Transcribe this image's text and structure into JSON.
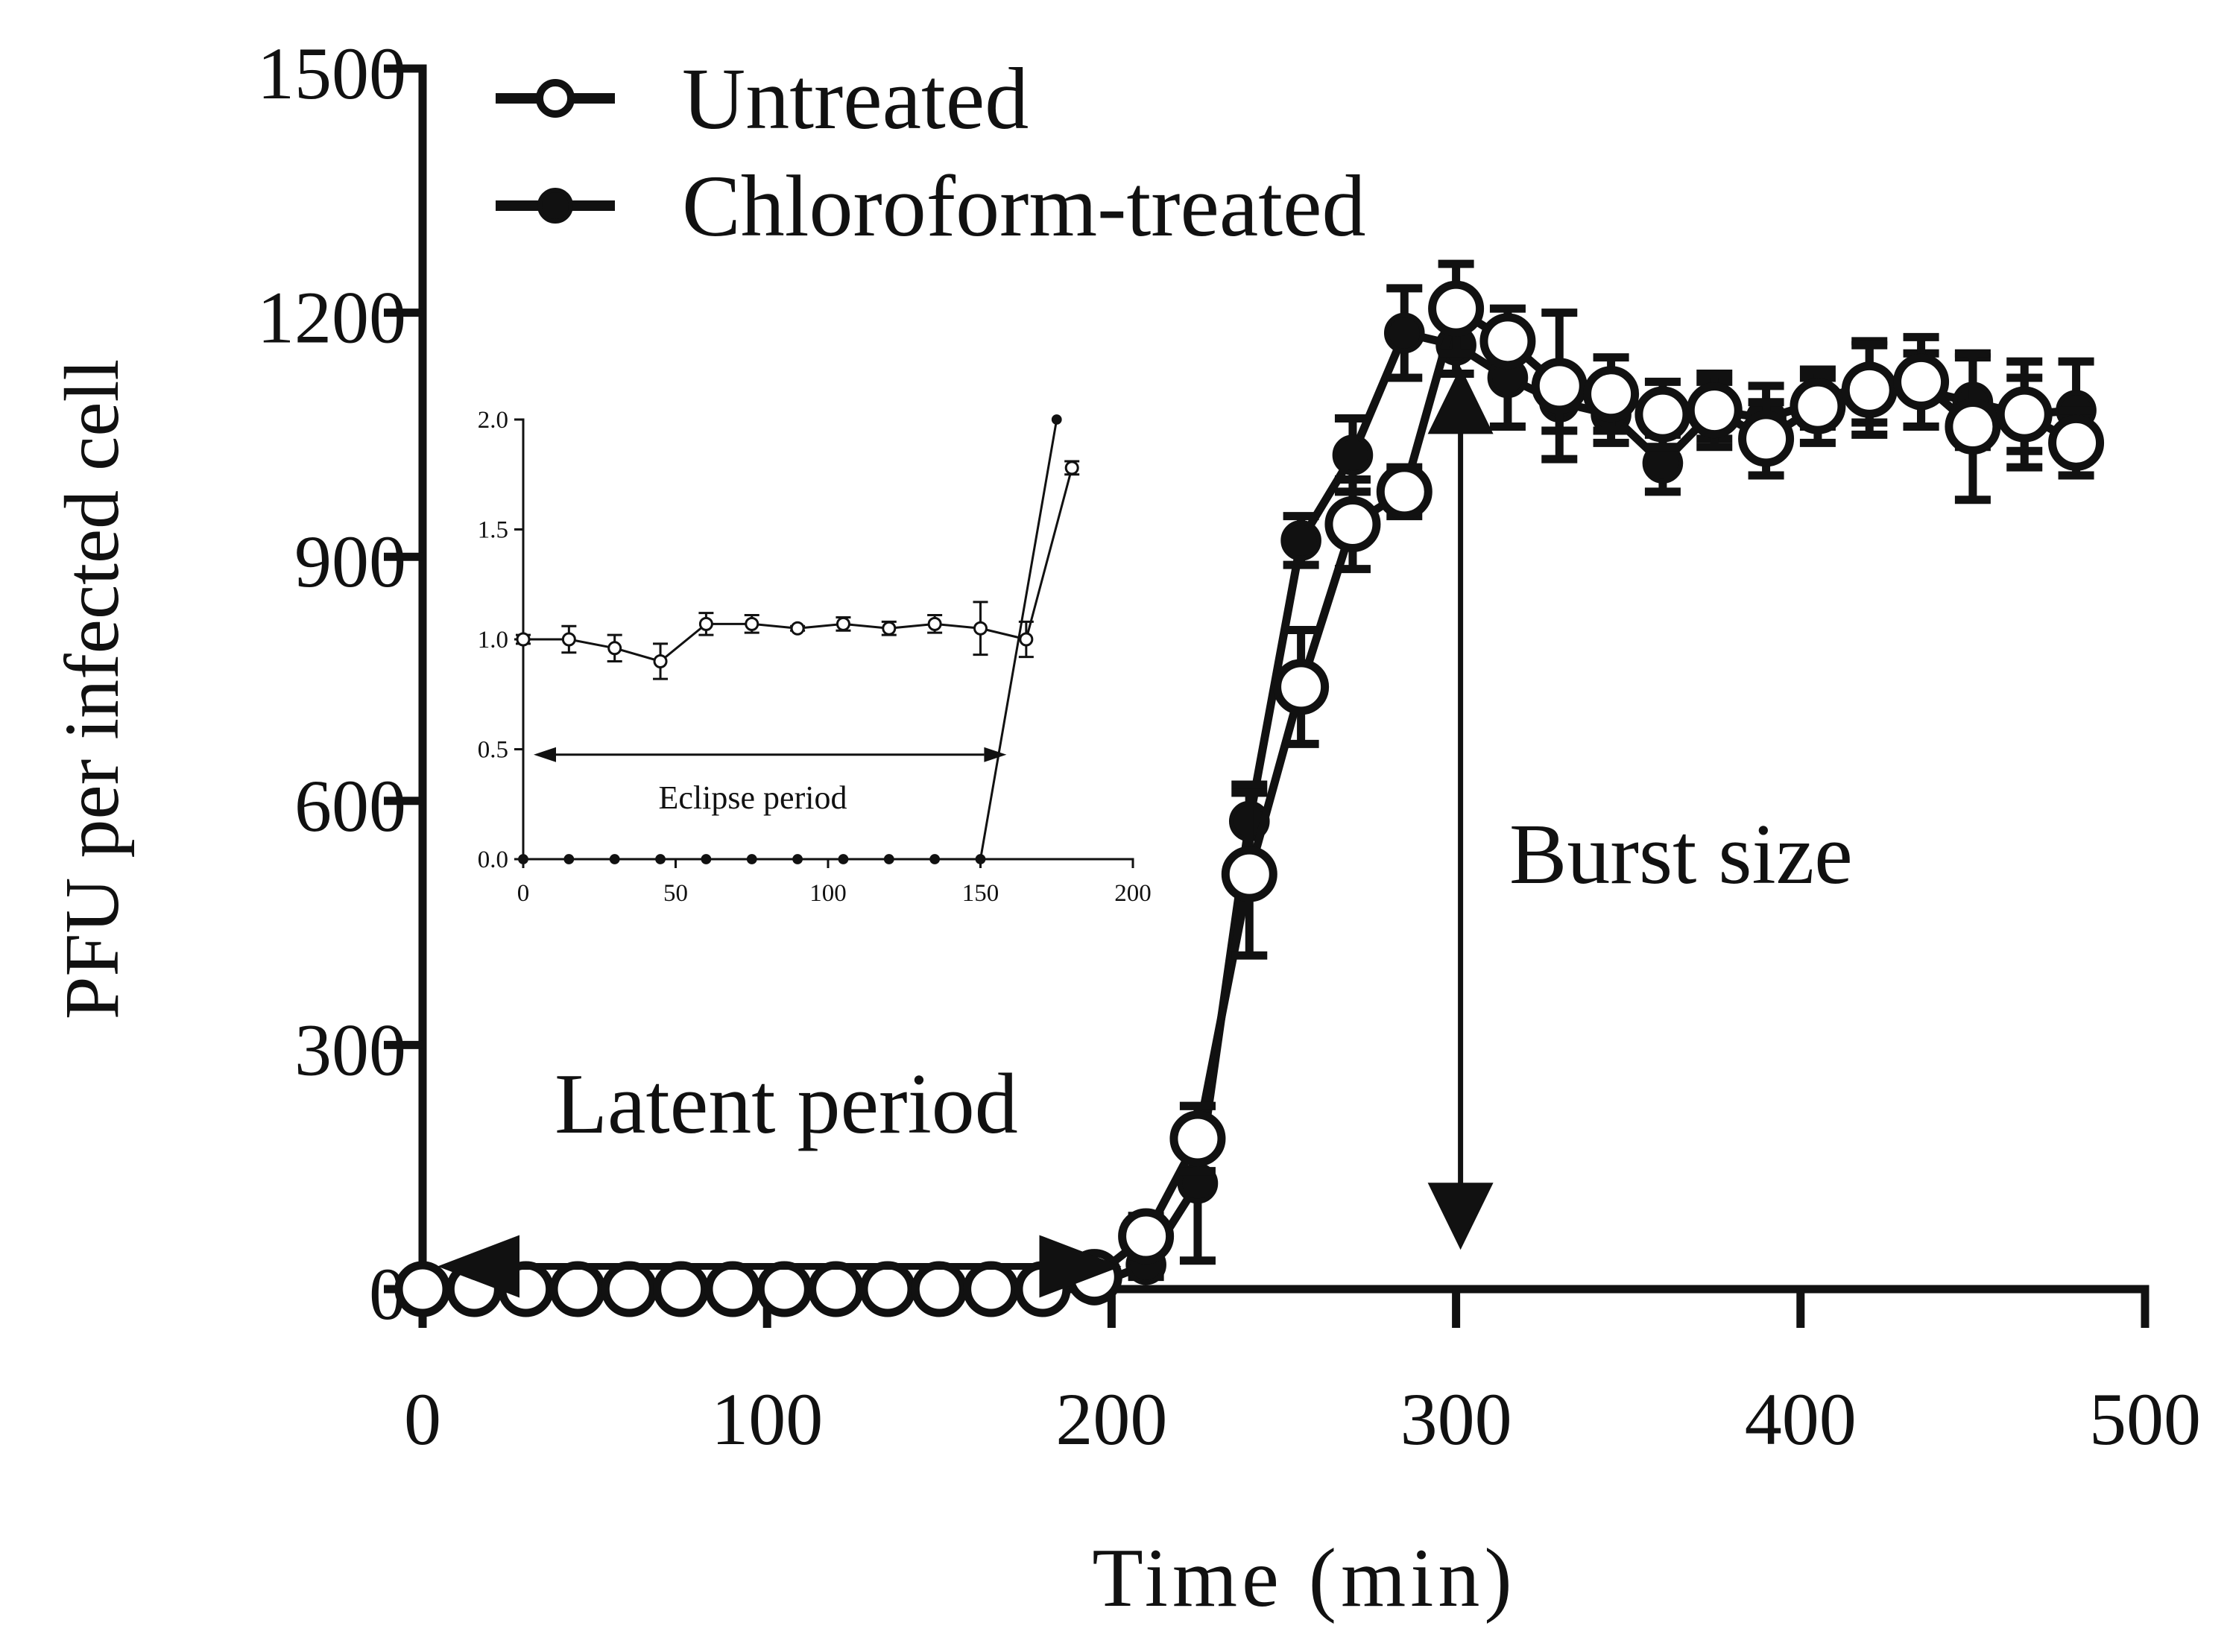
{
  "chart_data": [
    {
      "id": "main",
      "type": "line",
      "title": "",
      "xlabel": "Time (min)",
      "ylabel": "PFU per infected cell",
      "xlim": [
        0,
        500
      ],
      "ylim": [
        0,
        1500
      ],
      "xticks": [
        0,
        100,
        200,
        300,
        400,
        500
      ],
      "yticks": [
        0,
        300,
        600,
        900,
        1200,
        1500
      ],
      "xtick_labels": [
        "0",
        "100",
        "200",
        "300",
        "400",
        "500"
      ],
      "ytick_labels": [
        "0",
        "300",
        "600",
        "900",
        "1200",
        "1500"
      ],
      "grid": false,
      "legend": "top-left",
      "series": [
        {
          "name": "Untreated",
          "marker": "open-circle",
          "x": [
            0,
            15,
            30,
            45,
            60,
            75,
            90,
            105,
            120,
            135,
            150,
            165,
            180,
            195,
            210,
            225,
            240,
            255,
            270,
            285,
            300,
            315,
            330,
            345,
            360,
            375,
            390,
            405,
            420,
            435,
            450,
            465,
            480
          ],
          "y": [
            0,
            0,
            0,
            0,
            0,
            0,
            0,
            0,
            0,
            0,
            0,
            0,
            0,
            15,
            65,
            185,
            510,
            740,
            940,
            980,
            1205,
            1165,
            1110,
            1100,
            1075,
            1080,
            1045,
            1085,
            1105,
            1115,
            1060,
            1075,
            1040
          ],
          "err": [
            0,
            0,
            0,
            0,
            0,
            0,
            0,
            0,
            0,
            0,
            0,
            0,
            0,
            10,
            25,
            40,
            100,
            70,
            55,
            30,
            55,
            40,
            90,
            45,
            40,
            45,
            45,
            45,
            55,
            55,
            90,
            65,
            40
          ]
        },
        {
          "name": "Chloroform-treated",
          "marker": "filled-circle",
          "x": [
            0,
            15,
            30,
            45,
            60,
            75,
            90,
            105,
            120,
            135,
            150,
            165,
            180,
            195,
            210,
            225,
            240,
            255,
            270,
            285,
            300,
            315,
            330,
            345,
            360,
            375,
            390,
            405,
            420,
            435,
            450,
            465,
            480
          ],
          "y": [
            0,
            0,
            0,
            0,
            0,
            0,
            0,
            0,
            0,
            0,
            0,
            0,
            0,
            5,
            30,
            130,
            575,
            920,
            1025,
            1175,
            1160,
            1120,
            1090,
            1075,
            1015,
            1080,
            1070,
            1090,
            1115,
            1105,
            1090,
            1075,
            1080
          ],
          "err": [
            0,
            0,
            0,
            0,
            0,
            0,
            0,
            0,
            0,
            0,
            0,
            0,
            0,
            5,
            15,
            95,
            45,
            30,
            45,
            55,
            35,
            60,
            35,
            35,
            35,
            35,
            40,
            30,
            50,
            45,
            55,
            45,
            60
          ]
        }
      ],
      "annotations": [
        {
          "text": "Latent period",
          "arrow": "double-horizontal",
          "from_x": 0,
          "to_x": 205,
          "at_y": 60
        },
        {
          "text": "Burst size",
          "arrow": "double-vertical",
          "at_x": 300,
          "from_y": 30,
          "to_y": 1170
        }
      ]
    },
    {
      "id": "inset",
      "type": "line",
      "xlim": [
        0,
        200
      ],
      "ylim": [
        0,
        2.0
      ],
      "xticks": [
        0,
        50,
        100,
        150,
        200
      ],
      "yticks": [
        0,
        0.5,
        1.0,
        1.5,
        2.0
      ],
      "xtick_labels": [
        "0",
        "50",
        "100",
        "150",
        "200"
      ],
      "ytick_labels": [
        "0.0",
        "0.5",
        "1.0",
        "1.5",
        "2.0"
      ],
      "series": [
        {
          "name": "Untreated",
          "marker": "open-circle",
          "x": [
            0,
            15,
            30,
            45,
            60,
            75,
            90,
            105,
            120,
            135,
            150,
            165,
            180
          ],
          "y": [
            1.0,
            1.0,
            0.96,
            0.9,
            1.07,
            1.07,
            1.05,
            1.07,
            1.05,
            1.07,
            1.05,
            1.0,
            1.78
          ],
          "err": [
            0.02,
            0.06,
            0.06,
            0.08,
            0.05,
            0.04,
            0.01,
            0.03,
            0.03,
            0.04,
            0.12,
            0.08,
            0.03
          ]
        },
        {
          "name": "Chloroform-treated",
          "marker": "filled-circle",
          "x": [
            0,
            15,
            30,
            45,
            60,
            75,
            90,
            105,
            120,
            135,
            150,
            175
          ],
          "y": [
            0,
            0,
            0,
            0,
            0,
            0,
            0,
            0,
            0,
            0,
            0,
            2.0
          ],
          "err": [
            0,
            0,
            0,
            0,
            0,
            0,
            0,
            0,
            0,
            0,
            0,
            0
          ]
        }
      ],
      "annotations": [
        {
          "text": "Eclipse period",
          "arrow": "double-horizontal",
          "from_x": 0,
          "to_x": 160,
          "at_y": 0.55
        }
      ]
    }
  ]
}
